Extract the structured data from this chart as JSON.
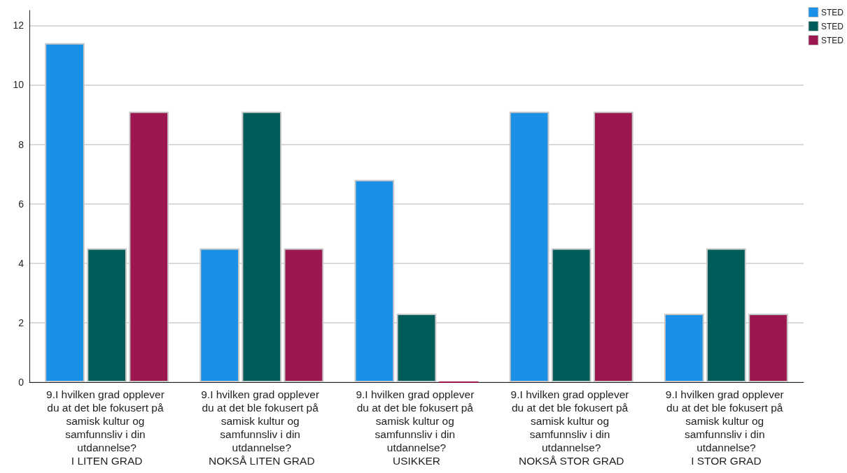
{
  "chart_data": {
    "type": "bar",
    "categories": [
      "9.I hvilken grad opplever du at det ble fokusert på samisk kultur og samfunnsliv i din utdannelse?\nI LITEN GRAD",
      "9.I hvilken grad opplever du at det ble fokusert på samisk kultur og samfunnsliv i din utdannelse?\nNOKSÅ LITEN GRAD",
      "9.I hvilken grad opplever du at det ble fokusert på samisk kultur og samfunnsliv i din utdannelse?\nUSIKKER",
      "9.I hvilken grad opplever du at det ble fokusert på samisk kultur og samfunnsliv i din utdannelse?\nNOKSÅ STOR GRAD",
      "9.I hvilken grad opplever du at det ble fokusert på samisk kultur og samfunnsliv i din utdannelse?\nI STOR GRAD"
    ],
    "series": [
      {
        "name": "STED",
        "color": "#1a90e6",
        "values": [
          11.4,
          4.5,
          6.8,
          9.1,
          2.3
        ]
      },
      {
        "name": "STED",
        "color": "#005c58",
        "values": [
          4.5,
          9.1,
          2.3,
          4.5,
          4.5
        ]
      },
      {
        "name": "STED",
        "color": "#9c1750",
        "values": [
          9.1,
          4.5,
          0,
          9.1,
          2.3
        ]
      }
    ],
    "ylim": [
      0,
      12.5
    ],
    "yticks": [
      0,
      2,
      4,
      6,
      8,
      10,
      12
    ],
    "grid": "y",
    "legend": "top right"
  }
}
